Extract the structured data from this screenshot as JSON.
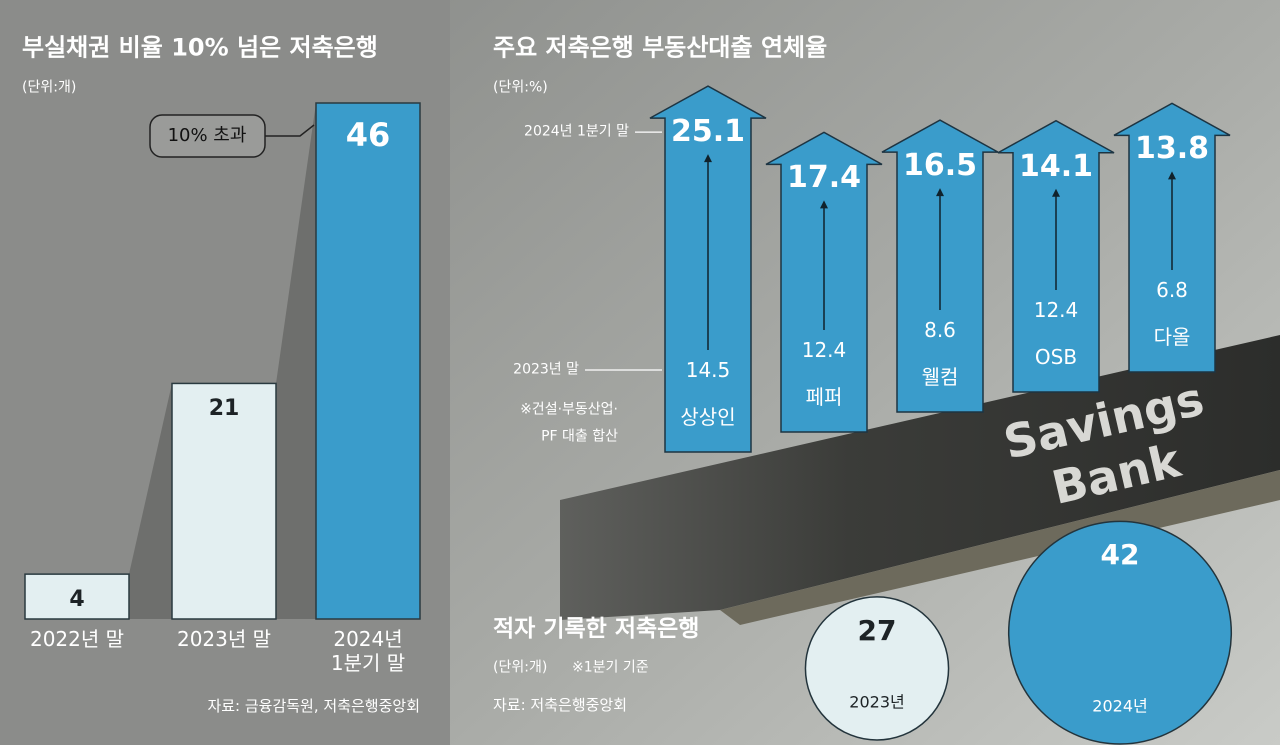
{
  "chart_data": [
    {
      "type": "bar",
      "title": "부실채권 비율 10% 넘은 저축은행",
      "unit": "(단위:개)",
      "categories": [
        "2022년 말",
        "2023년 말",
        "2024년\n1분기 말"
      ],
      "values": [
        4,
        21,
        46
      ],
      "colors": [
        "#e3eff1",
        "#e3eff1",
        "#3a9ccb"
      ],
      "annotation": "10% 초과",
      "source": "자료: 금융감독원, 저축은행중앙회"
    },
    {
      "type": "arrow",
      "title": "주요 저축은행 부동산대출 연체율",
      "unit": "(단위:%)",
      "categories": [
        "상상인",
        "페퍼",
        "웰컴",
        "OSB",
        "다올"
      ],
      "series": [
        {
          "name": "2024년 1분기 말",
          "color": "#3a9ccb",
          "values": [
            25.1,
            17.4,
            16.5,
            14.1,
            13.8
          ]
        },
        {
          "name": "2023년 말",
          "values": [
            14.5,
            12.4,
            8.6,
            12.4,
            6.8
          ]
        }
      ],
      "note": "※건설·부동산업·\nPF 대출 합산"
    },
    {
      "type": "bubble",
      "title": "적자 기록한 저축은행",
      "unit": "(단위:개)",
      "note": "※1분기 기준",
      "source": "자료: 저축은행중앙회",
      "categories": [
        "2023년",
        "2024년"
      ],
      "values": [
        27,
        42
      ],
      "colors": [
        "#e3eff1",
        "#3a9ccb"
      ]
    }
  ],
  "photo_sign": "Savings Bank"
}
